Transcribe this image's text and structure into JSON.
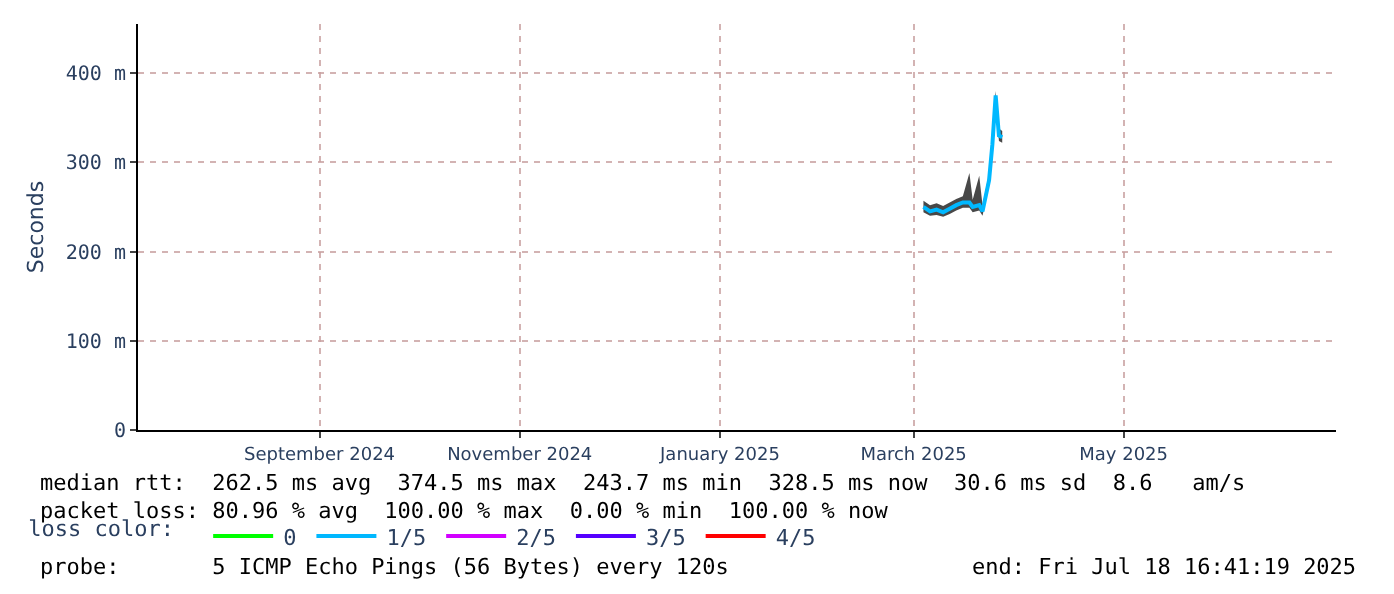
{
  "chart_data": {
    "type": "line",
    "ylabel": "Seconds",
    "x": [
      "2025-03-15",
      "2025-03-17",
      "2025-03-19",
      "2025-03-21",
      "2025-03-23",
      "2025-03-25",
      "2025-03-27",
      "2025-03-29",
      "2025-03-30",
      "2025-04-01",
      "2025-04-02",
      "2025-04-04",
      "2025-04-05",
      "2025-04-06",
      "2025-04-07",
      "2025-04-08"
    ],
    "series": [
      {
        "name": "0",
        "color": "#00ff00",
        "values": [
          null,
          null,
          null,
          null,
          null,
          null,
          null,
          null,
          null,
          null,
          null,
          null,
          null,
          null,
          null,
          null
        ]
      },
      {
        "name": "1/5",
        "color": "#00b8ff",
        "values": [
          250,
          245,
          247,
          244,
          248,
          252,
          255,
          255,
          250,
          252,
          245,
          280,
          320,
          375,
          330,
          328
        ],
        "lower": [
          244,
          240,
          241,
          239,
          242,
          246,
          249,
          249,
          244,
          246,
          240,
          274,
          314,
          365,
          324,
          322
        ],
        "upper": [
          257,
          252,
          254,
          251,
          255,
          259,
          262,
          288,
          258,
          285,
          252,
          288,
          328,
          380,
          338,
          335
        ]
      },
      {
        "name": "2/5",
        "color": "#d200ff",
        "values": [
          null,
          null,
          null,
          null,
          null,
          null,
          null,
          null,
          null,
          null,
          null,
          null,
          null,
          null,
          null,
          null
        ]
      },
      {
        "name": "3/5",
        "color": "#5500ff",
        "values": [
          null,
          null,
          null,
          null,
          null,
          null,
          null,
          null,
          null,
          null,
          null,
          null,
          null,
          null,
          null,
          null
        ]
      },
      {
        "name": "4/5",
        "color": "#ff0000",
        "values": [
          null,
          null,
          null,
          null,
          null,
          null,
          null,
          null,
          null,
          null,
          null,
          null,
          null,
          null,
          null,
          null
        ]
      }
    ],
    "xlim": [
      "2024-07-18T16:41",
      "2025-07-18T16:41"
    ],
    "xticks": [
      {
        "value": "2024-09-12",
        "label": "September 2024"
      },
      {
        "value": "2024-11-12",
        "label": "November 2024"
      },
      {
        "value": "2025-01-12",
        "label": "January 2025"
      },
      {
        "value": "2025-03-12",
        "label": "March 2025"
      },
      {
        "value": "2025-05-15",
        "label": "May 2025"
      }
    ],
    "ylim": [
      0,
      455
    ],
    "yticks": [
      0,
      {
        "value": 100,
        "label": "100 m"
      },
      {
        "value": 200,
        "label": "200 m"
      },
      {
        "value": 300,
        "label": "300 m"
      },
      {
        "value": 400,
        "label": "400 m"
      }
    ],
    "grid": true,
    "marker": "none",
    "line_style": "solid",
    "legend": "bottom",
    "legend_title": "loss color:",
    "annotations": [
      "median rtt:  262.5 ms avg  374.5 ms max  243.7 ms min  328.5 ms now  30.6 ms sd  8.6   am/s",
      "packet loss: 80.96 % avg  100.00 % max  0.00 % min  100.00 % now",
      "probe:       5 ICMP Echo Pings (56 Bytes) every 120s",
      "end: Fri Jul 18 16:41:19 2025"
    ]
  }
}
